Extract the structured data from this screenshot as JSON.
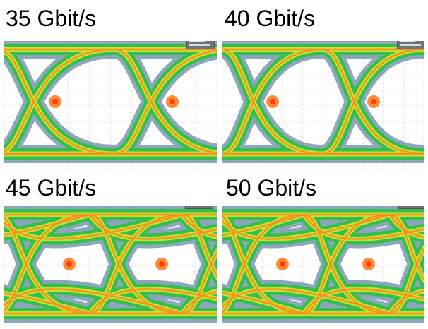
{
  "panels": [
    {
      "label": "35 Gbit/s"
    },
    {
      "label": "40 Gbit/s"
    },
    {
      "label": "45 Gbit/s"
    },
    {
      "label": "50 Gbit/s"
    }
  ],
  "colors": {
    "outer": "#2f5f8a",
    "mid": "#2fbf47",
    "inner": "#d8e52a",
    "core": "#ff7f1f",
    "hot": "#ff3c12",
    "grid": "#c8c8c8"
  },
  "icons": [
    "scope-info-box"
  ]
}
